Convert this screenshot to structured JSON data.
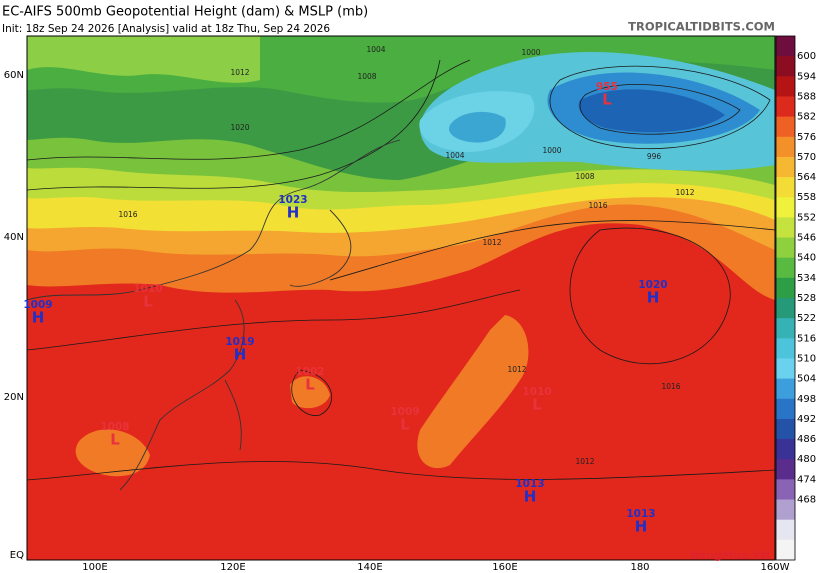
{
  "header": {
    "title": "EC-AIFS 500mb Geopotential Height (dam) & MSLP (mb)",
    "subtitle": "Init: 18z Sep 24 2026   [Analysis]   valid at 18z Thu, Sep 24 2026",
    "source": "TROPICALTIDBITS.COM"
  },
  "axes": {
    "latitude": [
      "60N",
      "40N",
      "20N",
      "EQ"
    ],
    "longitude": [
      "100E",
      "120E",
      "140E",
      "160E",
      "180",
      "160W"
    ]
  },
  "colorbar": {
    "labels": [
      "600",
      "594",
      "588",
      "582",
      "576",
      "570",
      "564",
      "558",
      "552",
      "546",
      "540",
      "534",
      "528",
      "522",
      "516",
      "510",
      "504",
      "498",
      "492",
      "486",
      "480",
      "474",
      "468"
    ],
    "colors": [
      "#6e0e3e",
      "#8c0c22",
      "#b41414",
      "#dc2a1c",
      "#ee6024",
      "#f4902a",
      "#f6b832",
      "#f4dc36",
      "#eef23a",
      "#c6e23e",
      "#8ed03e",
      "#58ba40",
      "#2e9e46",
      "#269a78",
      "#36b2b4",
      "#4ec4dc",
      "#6ad2ee",
      "#3c9edc",
      "#2a74c8",
      "#2452a8",
      "#3a3296",
      "#5a2c8c",
      "#8a64b4",
      "#b0a0d0",
      "#e6e6f0",
      "#f4f4f4"
    ]
  },
  "centers": [
    {
      "type": "L",
      "value": "955",
      "color": "#e8323c"
    },
    {
      "type": "H",
      "value": "1023",
      "color": "#2030c8"
    },
    {
      "type": "H",
      "value": "1020",
      "color": "#2030c8"
    },
    {
      "type": "H",
      "value": "1019",
      "color": "#2030c8"
    },
    {
      "type": "H",
      "value": "1009",
      "color": "#2030c8"
    },
    {
      "type": "L",
      "value": "1010",
      "color": "#e8323c"
    },
    {
      "type": "L",
      "value": "1002",
      "color": "#e8323c"
    },
    {
      "type": "L",
      "value": "1009",
      "color": "#e8323c"
    },
    {
      "type": "L",
      "value": "1010",
      "color": "#e8323c"
    },
    {
      "type": "L",
      "value": "1008",
      "color": "#e8323c"
    },
    {
      "type": "H",
      "value": "1013",
      "color": "#2030c8"
    },
    {
      "type": "H",
      "value": "1013",
      "color": "#2030c8"
    }
  ],
  "isobar_labels": [
    "1004",
    "1000",
    "996",
    "1008",
    "1012",
    "1016",
    "1020",
    "1016",
    "1012",
    "1012",
    "1004",
    "1000",
    "1008",
    "1012",
    "1012",
    "1016"
  ],
  "watermark": "NangMua.VN"
}
